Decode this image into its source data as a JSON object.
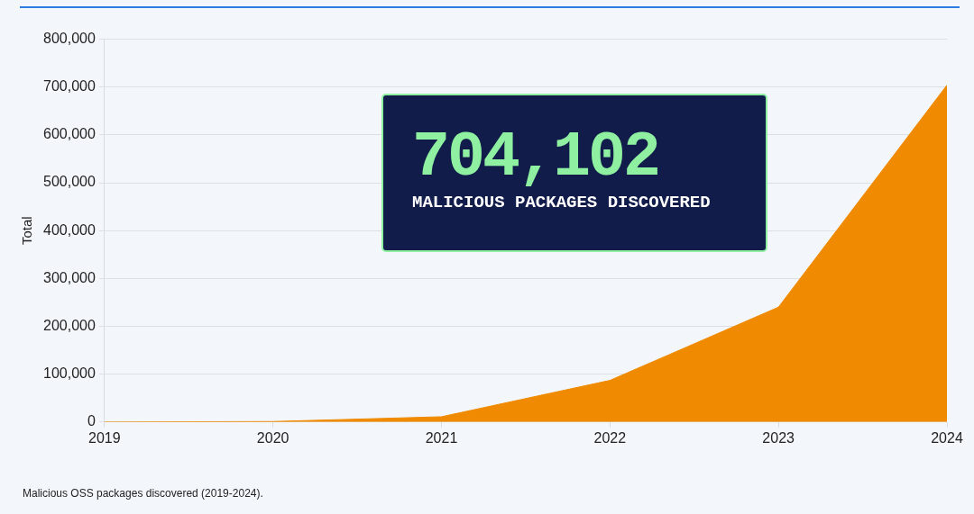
{
  "chart_data": {
    "type": "area",
    "ylabel": "Total",
    "x": [
      2019,
      2020,
      2021,
      2022,
      2023,
      2024
    ],
    "series": [
      {
        "color": "#f08a00",
        "values": [
          0,
          1000,
          11000,
          87000,
          240000,
          704102
        ]
      }
    ],
    "xlim": [
      2019,
      2024
    ],
    "xticks": [
      2019,
      2020,
      2021,
      2022,
      2023,
      2024
    ],
    "ylim": [
      0,
      800000
    ],
    "yticks": [
      0,
      {
        "value": 100000,
        "label": "100,000"
      },
      {
        "value": 200000,
        "label": "200,000"
      },
      {
        "value": 300000,
        "label": "300,000"
      },
      {
        "value": 400000,
        "label": "400,000"
      },
      {
        "value": 500000,
        "label": "500,000"
      },
      {
        "value": 600000,
        "label": "600,000"
      },
      {
        "value": 700000,
        "label": "700,000"
      },
      {
        "value": 800000,
        "label": "800,000"
      }
    ],
    "grid": "y",
    "legend": false,
    "marker": "none",
    "annotations": [
      "704,102",
      "MALICIOUS PACKAGES DISCOVERED",
      "Malicious OSS packages discovered (2019-2024)."
    ]
  }
}
